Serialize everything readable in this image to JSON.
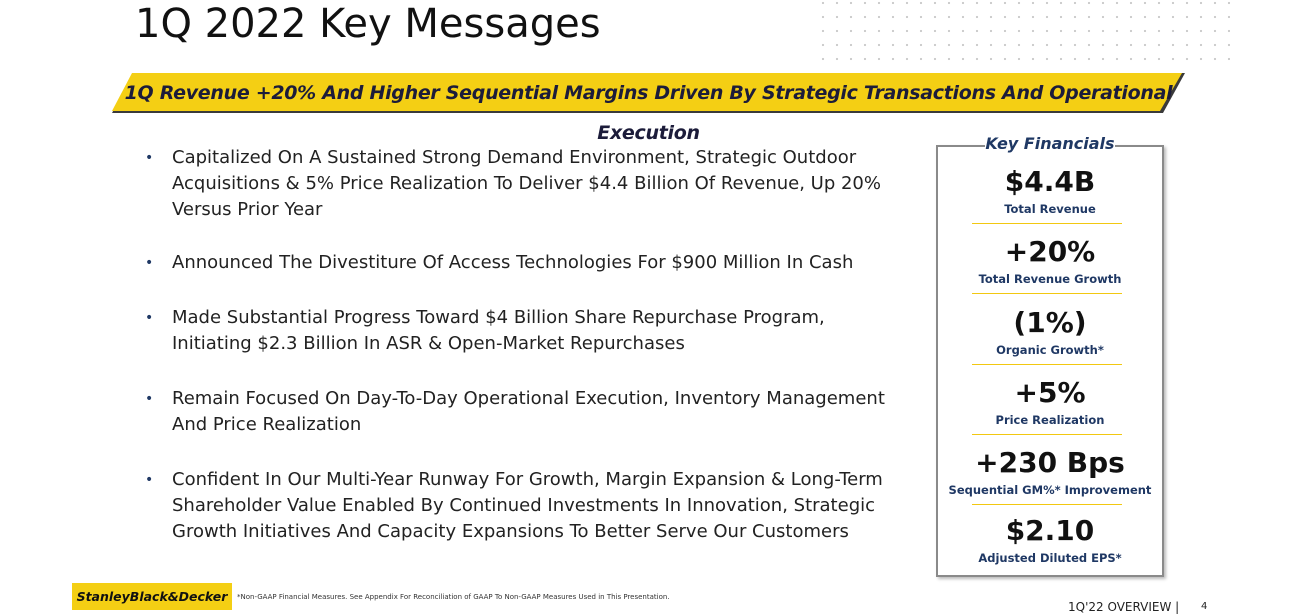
{
  "header": {
    "title": "1Q 2022 Key Messages",
    "banner": "1Q Revenue +20% And Higher Sequential Margins Driven By Strategic Transactions And Operational Execution"
  },
  "bullets": [
    "Capitalized On A Sustained Strong Demand Environment, Strategic Outdoor Acquisitions & 5% Price Realization To Deliver $4.4 Billion Of Revenue, Up 20% Versus Prior Year",
    "Announced The Divestiture Of Access Technologies For $900 Million In Cash",
    "Made Substantial Progress Toward $4 Billion Share Repurchase Program, Initiating $2.3 Billion In ASR & Open-Market Repurchases",
    "Remain Focused On Day-To-Day Operational Execution, Inventory Management And Price Realization",
    "Confident In Our Multi-Year Runway For Growth, Margin Expansion & Long-Term Shareholder Value Enabled By Continued Investments In Innovation, Strategic Growth Initiatives And Capacity Expansions To Better Serve Our Customers"
  ],
  "key_financials": {
    "title": "Key Financials",
    "items": [
      {
        "value": "$4.4B",
        "label": "Total Revenue"
      },
      {
        "value": "+20%",
        "label": "Total Revenue Growth"
      },
      {
        "value": "(1%)",
        "label": "Organic Growth*"
      },
      {
        "value": "+5%",
        "label": "Price Realization"
      },
      {
        "value": "+230 Bps",
        "label": "Sequential GM%* Improvement"
      },
      {
        "value": "$2.10",
        "label": "Adjusted Diluted EPS*"
      }
    ]
  },
  "footer": {
    "logo": "StanleyBlack&Decker",
    "footnote": "*Non-GAAP Financial Measures. See Appendix For Reconciliation of GAAP To Non-GAAP Measures Used in This Presentation.",
    "section": "1Q'22 OVERVIEW |",
    "page": "4"
  }
}
